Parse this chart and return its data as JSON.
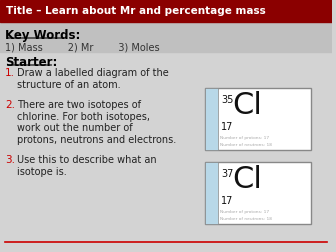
{
  "title": "Title – Learn about Mr and percentage mass",
  "title_bg": "#8B0000",
  "title_color": "#FFFFFF",
  "bg_color": "#D3D3D3",
  "section_bg": "#C0C0C0",
  "keywords_label": "Key Words:",
  "keywords_items": "1) Mass        2) Mr        3) Moles",
  "starter_label": "Starter:",
  "starter_items": [
    "Draw a labelled diagram of the\nstructure of an atom.",
    "There are two isotopes of\nchlorine. For both isotopes,\nwork out the number of\nprotons, neutrons and electrons.",
    "Use this to describe what an\nisotope is."
  ],
  "cl35_mass": "35",
  "cl35_atomic": "17",
  "cl35_symbol": "Cl",
  "cl37_mass": "37",
  "cl37_atomic": "17",
  "cl37_symbol": "Cl",
  "box_bg": "#FFFFFF",
  "box_border": "#888888",
  "line_color": "#CC0000",
  "strip_color": "#B8D8E8",
  "small_text_color": "#AAAAAA",
  "number_color": "#CC0000"
}
